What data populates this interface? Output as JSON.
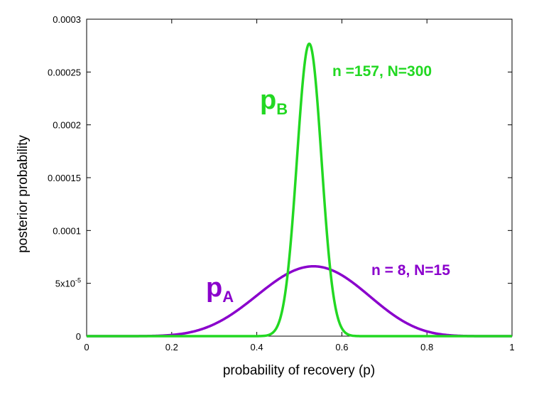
{
  "chart_data": {
    "type": "line",
    "xlabel": "probability of recovery (p)",
    "ylabel": "posterior probability",
    "xlim": [
      0,
      1
    ],
    "ylim": [
      0,
      0.0003
    ],
    "x_ticks": [
      {
        "value": 0,
        "label": "0"
      },
      {
        "value": 0.2,
        "label": "0.2"
      },
      {
        "value": 0.4,
        "label": "0.4"
      },
      {
        "value": 0.6,
        "label": "0.6"
      },
      {
        "value": 0.8,
        "label": "0.8"
      },
      {
        "value": 1,
        "label": "1"
      }
    ],
    "y_ticks": [
      {
        "value": 0,
        "label": "0"
      },
      {
        "value": 5e-05,
        "label": "5x10",
        "sup": "-5"
      },
      {
        "value": 0.0001,
        "label": "0.0001"
      },
      {
        "value": 0.00015,
        "label": "0.00015"
      },
      {
        "value": 0.0002,
        "label": "0.0002"
      },
      {
        "value": 0.00025,
        "label": "0.00025"
      },
      {
        "value": 0.0003,
        "label": "0.0003"
      }
    ],
    "grid": false,
    "series": [
      {
        "name": "pA",
        "label_main": "p",
        "label_sub": "A",
        "annotation": "n = 8, N=15",
        "color": "#8a00cc",
        "n": 8,
        "N": 15,
        "x": [
          0,
          0.1,
          0.15,
          0.2,
          0.25,
          0.3,
          0.35,
          0.4,
          0.45,
          0.5,
          0.533,
          0.55,
          0.6,
          0.65,
          0.7,
          0.75,
          0.8,
          0.85,
          0.9,
          1
        ],
        "y": [
          0,
          2e-07,
          8e-07,
          2.8e-06,
          7.5e-06,
          1.62e-05,
          2.92e-05,
          4.49e-05,
          5.89e-05,
          6.55e-05,
          6.61e-05,
          6.51e-05,
          5.67e-05,
          4.22e-05,
          2.61e-05,
          1.29e-05,
          4.7e-06,
          1.1e-06,
          1e-07,
          0
        ]
      },
      {
        "name": "pB",
        "label_main": "p",
        "label_sub": "B",
        "annotation": "n =157,  N=300",
        "color": "#22d822",
        "n": 157,
        "N": 300,
        "x": [
          0,
          0.4,
          0.42,
          0.44,
          0.46,
          0.47,
          0.48,
          0.49,
          0.5,
          0.51,
          0.52,
          0.523,
          0.53,
          0.54,
          0.55,
          0.56,
          0.57,
          0.58,
          0.6,
          0.62,
          0.64,
          1
        ],
        "y": [
          0,
          1e-07,
          1.3e-06,
          1.01e-05,
          4.77e-05,
          8.41e-05,
          0.0001321,
          0.0001853,
          0.0002324,
          0.0002611,
          0.0002623,
          0.0002768,
          0.0002623,
          0.0002342,
          0.0001859,
          0.0001317,
          8.31e-05,
          4.69e-05,
          1.07e-05,
          1.4e-06,
          1e-07,
          0
        ]
      }
    ]
  }
}
